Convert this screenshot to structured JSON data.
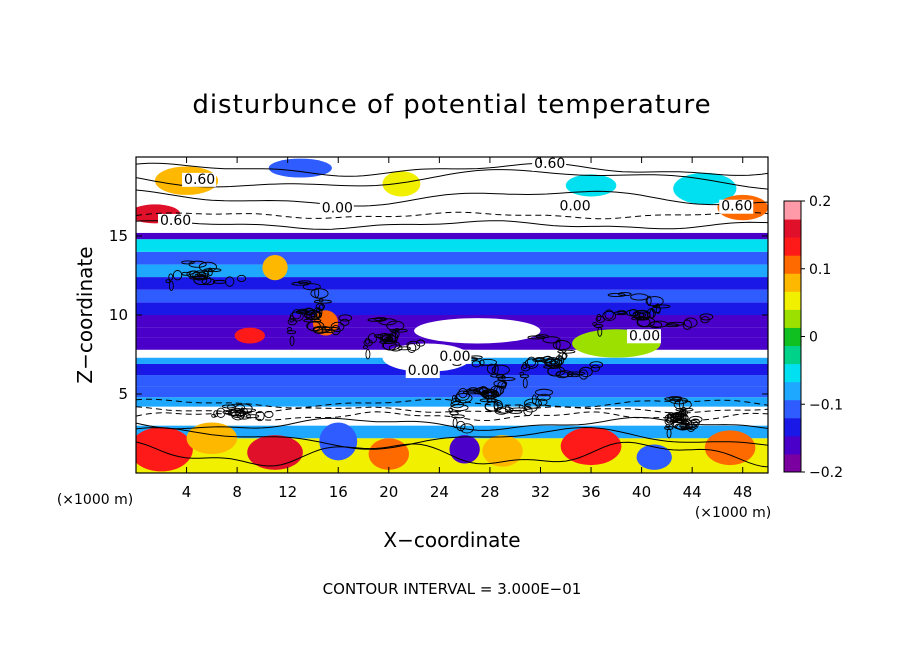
{
  "chart_data": {
    "type": "heatmap",
    "title": "disturbunce of potential temperature",
    "xlabel": "X−coordinate",
    "ylabel": "Z−coordinate",
    "x_unit": "(×1000 m)",
    "y_unit": "(×1000 m)",
    "xlim": [
      0,
      50
    ],
    "ylim": [
      0,
      20
    ],
    "x_ticks": [
      4,
      8,
      12,
      16,
      20,
      24,
      28,
      32,
      36,
      40,
      44,
      48
    ],
    "y_ticks": [
      5,
      10,
      15
    ],
    "colorbar": {
      "range": [
        -0.2,
        0.2
      ],
      "ticks": [
        -0.2,
        -0.1,
        0,
        0.1,
        0.2
      ],
      "tick_labels": [
        "−0.2",
        "−0.1",
        "0",
        "0.1",
        "0.2"
      ],
      "colors": [
        "#7a00a0",
        "#4a00c8",
        "#1a18e6",
        "#2f5cff",
        "#1fa8ff",
        "#00e0f0",
        "#00d28a",
        "#10c020",
        "#9ce000",
        "#f0f000",
        "#ffb800",
        "#ff6a00",
        "#ff1a1a",
        "#e0102a",
        "#ff9aa8"
      ]
    },
    "contour_interval_label": "CONTOUR INTERVAL = 3.000E−01",
    "contour_labels": [
      {
        "text": "0.60",
        "x": 3.8,
        "y": 18.3
      },
      {
        "text": "0.60",
        "x": 1.9,
        "y": 15.7
      },
      {
        "text": "0.00",
        "x": 14.7,
        "y": 16.5
      },
      {
        "text": "0.60",
        "x": 31.5,
        "y": 19.3
      },
      {
        "text": "0.00",
        "x": 33.5,
        "y": 16.6
      },
      {
        "text": "0.60",
        "x": 46.3,
        "y": 16.6
      },
      {
        "text": "0.00",
        "x": 39.0,
        "y": 8.4
      },
      {
        "text": "0.00",
        "x": 21.5,
        "y": 6.2
      },
      {
        "text": "0.00",
        "x": 24.0,
        "y": 7.1
      }
    ],
    "bands": [
      {
        "z0": 0.0,
        "z1": 2.2,
        "value": 0.05
      },
      {
        "z0": 2.2,
        "z1": 3.0,
        "value": -0.08
      },
      {
        "z0": 3.0,
        "z1": 4.2,
        "value": 0.0
      },
      {
        "z0": 4.2,
        "z1": 4.8,
        "value": -0.09
      },
      {
        "z0": 4.8,
        "z1": 5.5,
        "value": -0.12
      },
      {
        "z0": 5.5,
        "z1": 6.2,
        "value": -0.1
      },
      {
        "z0": 6.2,
        "z1": 6.9,
        "value": -0.14
      },
      {
        "z0": 6.9,
        "z1": 7.3,
        "value": -0.09
      },
      {
        "z0": 7.3,
        "z1": 7.8,
        "value": 0.0
      },
      {
        "z0": 7.8,
        "z1": 8.6,
        "value": -0.15
      },
      {
        "z0": 8.6,
        "z1": 9.2,
        "value": -0.17
      },
      {
        "z0": 9.2,
        "z1": 10.0,
        "value": -0.15
      },
      {
        "z0": 10.0,
        "z1": 10.8,
        "value": -0.13
      },
      {
        "z0": 10.8,
        "z1": 11.6,
        "value": -0.1
      },
      {
        "z0": 11.6,
        "z1": 12.4,
        "value": -0.13
      },
      {
        "z0": 12.4,
        "z1": 13.2,
        "value": -0.09
      },
      {
        "z0": 13.2,
        "z1": 14.0,
        "value": -0.12
      },
      {
        "z0": 14.0,
        "z1": 14.8,
        "value": -0.04
      },
      {
        "z0": 14.8,
        "z1": 15.2,
        "value": -0.17
      },
      {
        "z0": 15.2,
        "z1": 16.6,
        "value": 0.0
      },
      {
        "z0": 16.6,
        "z1": 20.0,
        "value": 0.0
      }
    ],
    "blobs": [
      {
        "x": 2,
        "z": 1.5,
        "rx": 2.5,
        "rz": 1.4,
        "value": 0.13
      },
      {
        "x": 6,
        "z": 2.2,
        "rx": 2.0,
        "rz": 1.0,
        "value": 0.09
      },
      {
        "x": 11,
        "z": 1.3,
        "rx": 2.2,
        "rz": 1.1,
        "value": 0.15
      },
      {
        "x": 16,
        "z": 2.0,
        "rx": 1.5,
        "rz": 1.2,
        "value": -0.1
      },
      {
        "x": 20,
        "z": 1.2,
        "rx": 1.6,
        "rz": 1.0,
        "value": 0.12
      },
      {
        "x": 26,
        "z": 1.5,
        "rx": 1.2,
        "rz": 0.9,
        "value": -0.16
      },
      {
        "x": 29,
        "z": 1.4,
        "rx": 1.6,
        "rz": 1.0,
        "value": 0.08
      },
      {
        "x": 36,
        "z": 1.7,
        "rx": 2.4,
        "rz": 1.2,
        "value": 0.14
      },
      {
        "x": 41,
        "z": 1.0,
        "rx": 1.4,
        "rz": 0.8,
        "value": -0.1
      },
      {
        "x": 47,
        "z": 1.6,
        "rx": 2.0,
        "rz": 1.1,
        "value": 0.1
      },
      {
        "x": 4,
        "z": 18.5,
        "rx": 2.5,
        "rz": 0.9,
        "value": 0.08
      },
      {
        "x": 13,
        "z": 19.3,
        "rx": 2.5,
        "rz": 0.6,
        "value": -0.12
      },
      {
        "x": 21,
        "z": 18.3,
        "rx": 1.5,
        "rz": 0.8,
        "value": 0.05
      },
      {
        "x": 36,
        "z": 18.2,
        "rx": 2.0,
        "rz": 0.7,
        "value": -0.05
      },
      {
        "x": 45,
        "z": 18.0,
        "rx": 2.5,
        "rz": 1.0,
        "value": -0.06
      },
      {
        "x": 1.5,
        "z": 16.4,
        "rx": 2.0,
        "rz": 0.6,
        "value": 0.16
      },
      {
        "x": 48,
        "z": 16.8,
        "rx": 2.0,
        "rz": 0.8,
        "value": 0.1
      },
      {
        "x": 27,
        "z": 9.0,
        "rx": 5.0,
        "rz": 0.8,
        "value": 0.0
      },
      {
        "x": 9,
        "z": 8.7,
        "rx": 1.2,
        "rz": 0.5,
        "value": 0.14
      },
      {
        "x": 15,
        "z": 9.5,
        "rx": 1.0,
        "rz": 0.8,
        "value": 0.11
      },
      {
        "x": 23,
        "z": 7.3,
        "rx": 3.5,
        "rz": 0.9,
        "value": 0.0
      },
      {
        "x": 38,
        "z": 8.2,
        "rx": 3.5,
        "rz": 0.9,
        "value": 0.03
      },
      {
        "x": 11,
        "z": 13.0,
        "rx": 1.0,
        "rz": 0.8,
        "value": 0.07
      }
    ]
  }
}
